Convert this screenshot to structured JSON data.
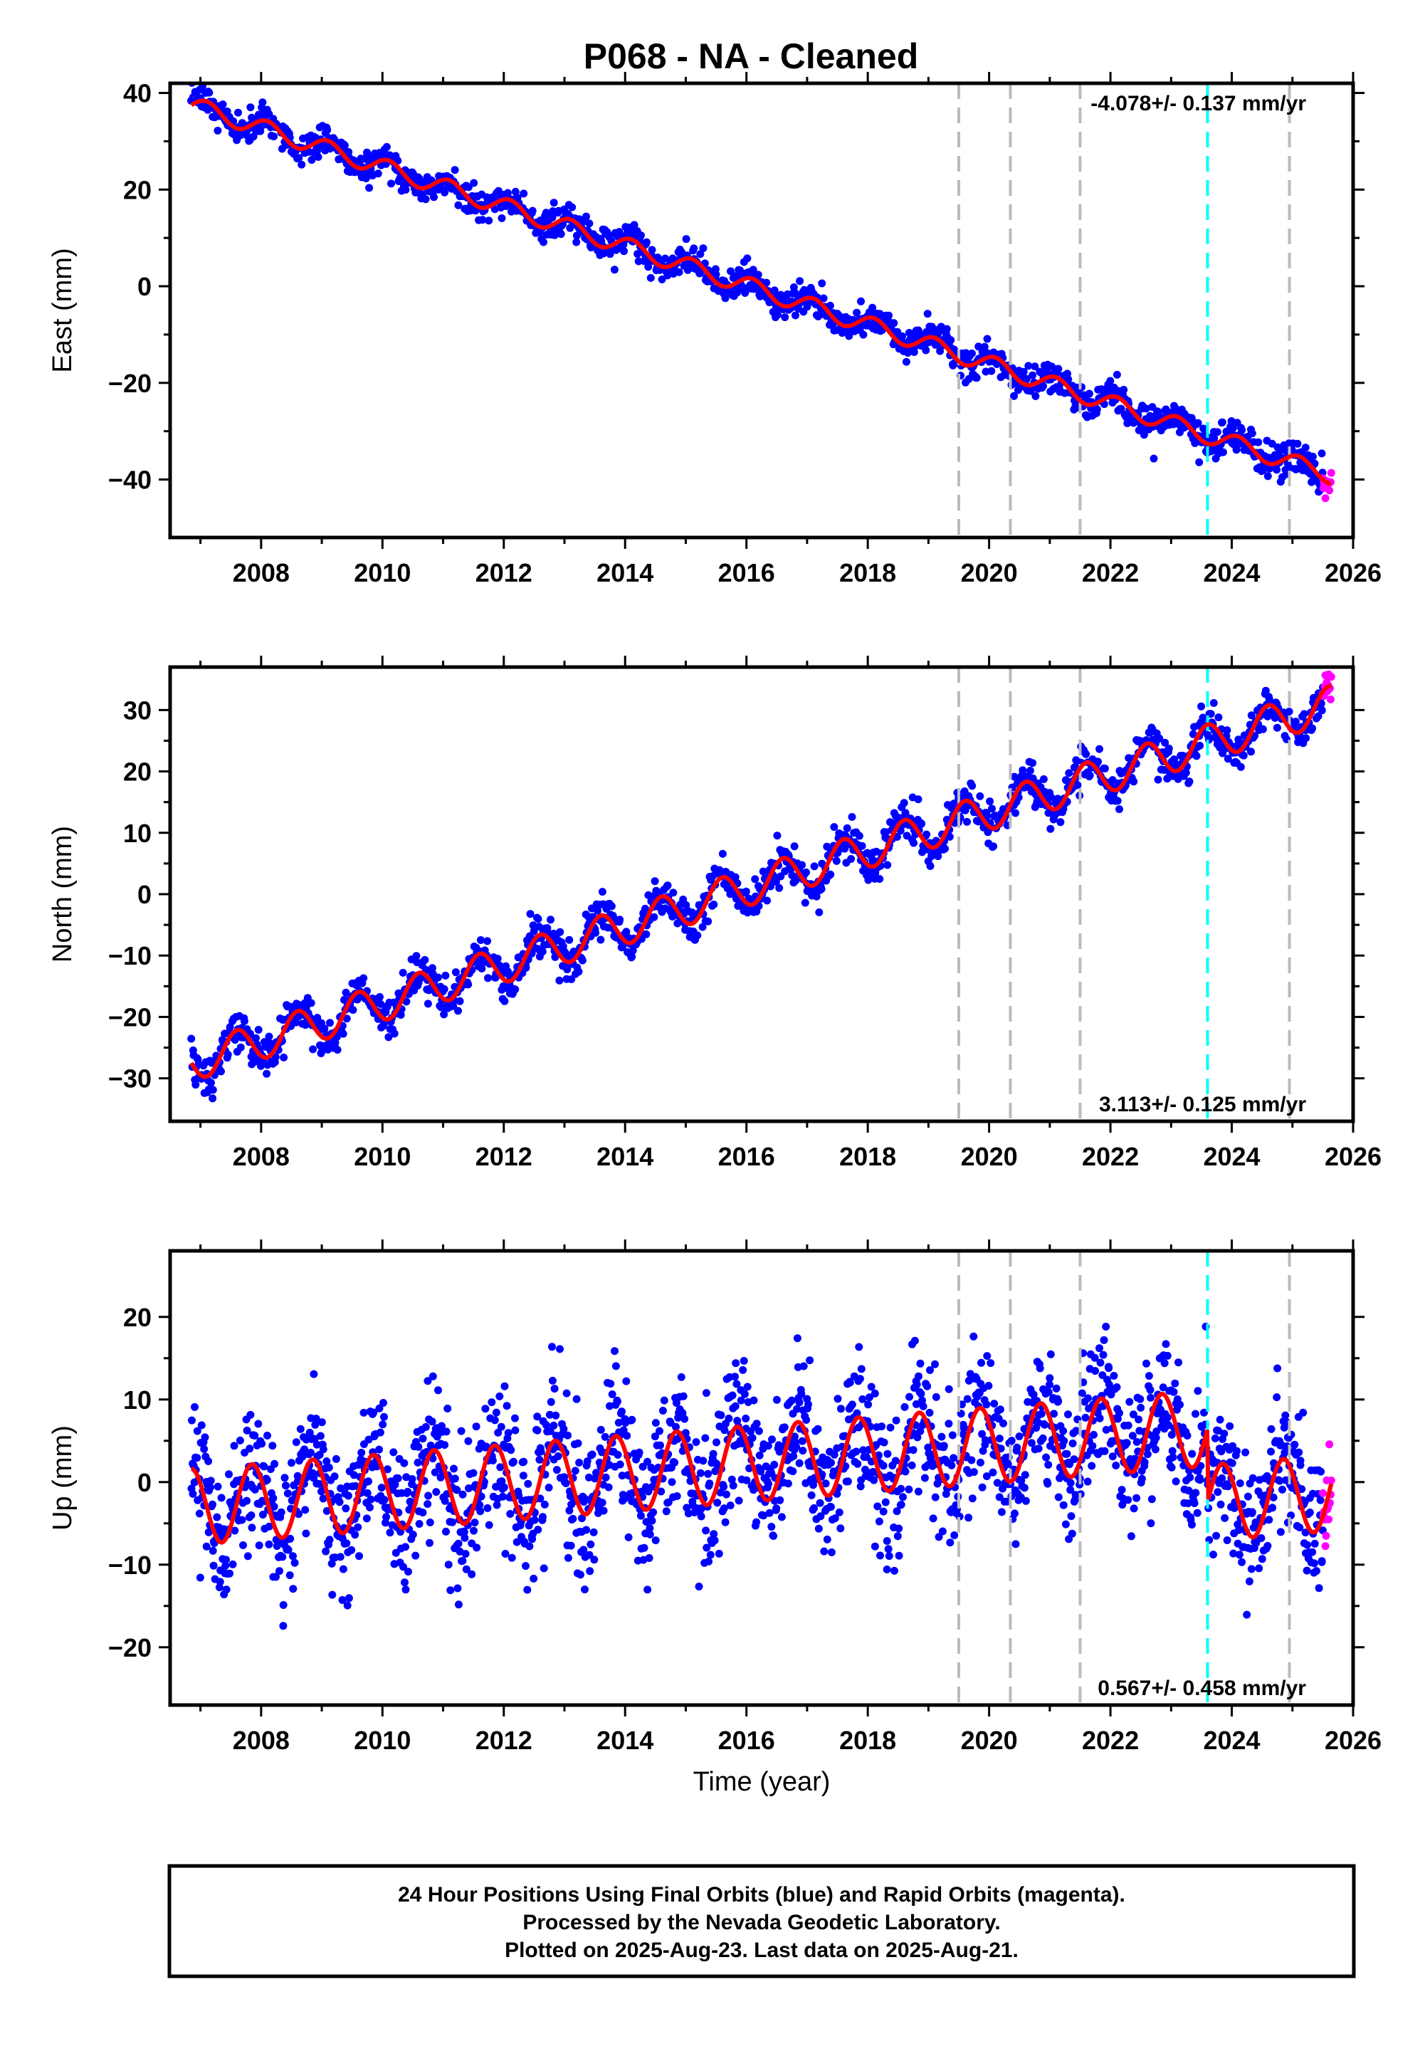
{
  "title": "P068  - NA - Cleaned",
  "footer": {
    "line1": "24 Hour Positions Using Final Orbits (blue) and Rapid Orbits (magenta).",
    "line2": "Processed by the Nevada Geodetic Laboratory.",
    "line3": "Plotted on 2025-Aug-23. Last data on 2025-Aug-21."
  },
  "colors": {
    "final_orbits": "#0000ff",
    "rapid_orbits": "#ff00ff",
    "model_fit": "#ff0000",
    "event_line_gray": "#bbbbbb",
    "event_line_cyan": "#00ffff"
  },
  "chart_data": [
    {
      "type": "scatter",
      "component": "East",
      "ylabel": "East (mm)",
      "xlabel": "",
      "xlim": [
        2006.5,
        2026.0
      ],
      "ylim": [
        -52,
        42
      ],
      "xticks": [
        2008,
        2010,
        2012,
        2014,
        2016,
        2018,
        2020,
        2022,
        2024,
        2026
      ],
      "yticks": [
        -40,
        -20,
        0,
        20,
        40
      ],
      "rate_label": "-4.078+/- 0.137 mm/yr",
      "rate_position": "top-right",
      "trend": {
        "velocity": -4.078,
        "value_at_start": 37.5,
        "annual_amplitude": 1.8,
        "annual_phase": 0.0,
        "scatter_sd": 1.6
      },
      "steps": [
        {
          "year": 2023.6,
          "offset": 0
        }
      ],
      "final_orbits": {
        "x_start": 2006.85,
        "x_end": 2025.5,
        "count": 1400
      },
      "rapid_orbits": {
        "x_start": 2025.5,
        "x_end": 2025.64,
        "count": 14
      },
      "event_lines_gray": [
        2019.5,
        2020.35,
        2021.5,
        2024.95
      ],
      "event_lines_cyan": [
        2023.6
      ],
      "grid": false
    },
    {
      "type": "scatter",
      "component": "North",
      "ylabel": "North (mm)",
      "xlabel": "",
      "xlim": [
        2006.5,
        2026.0
      ],
      "ylim": [
        -37,
        37
      ],
      "xticks": [
        2008,
        2010,
        2012,
        2014,
        2016,
        2018,
        2020,
        2022,
        2024,
        2026
      ],
      "yticks": [
        -30,
        -20,
        -10,
        0,
        10,
        20,
        30
      ],
      "rate_label": "3.113+/- 0.125 mm/yr",
      "rate_position": "bottom-right",
      "trend": {
        "velocity": 3.113,
        "value_at_start": -27.5,
        "annual_amplitude": 3.0,
        "annual_phase": 0.5,
        "scatter_sd": 1.6
      },
      "steps": [],
      "final_orbits": {
        "x_start": 2006.85,
        "x_end": 2025.5,
        "count": 1400
      },
      "rapid_orbits": {
        "x_start": 2025.5,
        "x_end": 2025.64,
        "count": 14
      },
      "event_lines_gray": [
        2019.5,
        2020.35,
        2021.5,
        2024.95
      ],
      "event_lines_cyan": [
        2023.6
      ],
      "grid": false
    },
    {
      "type": "scatter",
      "component": "Up",
      "ylabel": "Up (mm)",
      "xlabel": "Time (year)",
      "xlim": [
        2006.5,
        2026.0
      ],
      "ylim": [
        -27,
        28
      ],
      "xticks": [
        2008,
        2010,
        2012,
        2014,
        2016,
        2018,
        2020,
        2022,
        2024,
        2026
      ],
      "yticks": [
        -20,
        -10,
        0,
        10,
        20
      ],
      "rate_label": "0.567+/- 0.458 mm/yr",
      "rate_position": "bottom-right",
      "trend": {
        "velocity": 0.567,
        "value_at_start": -3.0,
        "annual_amplitude": 4.6,
        "annual_phase": 0.25,
        "scatter_sd": 4.3
      },
      "steps": [
        {
          "year": 2023.6,
          "offset": -9
        }
      ],
      "final_orbits": {
        "x_start": 2006.85,
        "x_end": 2025.5,
        "count": 1900
      },
      "rapid_orbits": {
        "x_start": 2025.5,
        "x_end": 2025.64,
        "count": 14
      },
      "event_lines_gray": [
        2019.5,
        2020.35,
        2021.5,
        2024.95
      ],
      "event_lines_cyan": [
        2023.6
      ],
      "grid": false
    }
  ]
}
